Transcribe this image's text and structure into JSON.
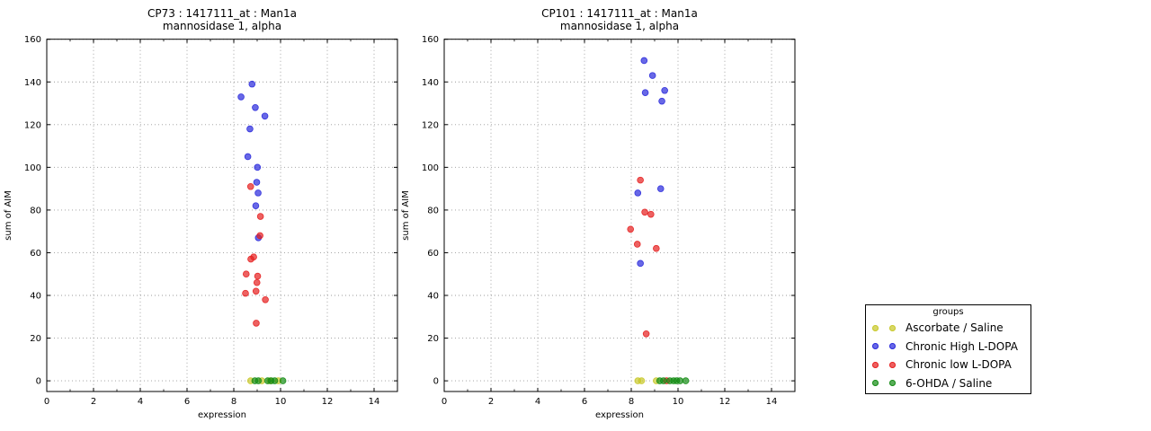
{
  "figure": {
    "background": "#ffffff"
  },
  "legend": {
    "title": "groups",
    "marker_alpha": 0.7,
    "entries": [
      {
        "label": "Ascorbate / Saline",
        "color": "#c8c828"
      },
      {
        "label": "Chronic High L-DOPA",
        "color": "#2828dc"
      },
      {
        "label": "Chronic low L-DOPA",
        "color": "#e61e1e"
      },
      {
        "label": "6-OHDA / Saline",
        "color": "#148c14"
      }
    ]
  },
  "chart_data": [
    {
      "type": "scatter",
      "title_line1": "CP73 : 1417111_at : Man1a",
      "title_line2": "mannosidase 1, alpha",
      "xlabel": "expression",
      "ylabel": "sum of AIM",
      "xlim": [
        0,
        15
      ],
      "ylim": [
        -5,
        160
      ],
      "xticks": [
        0,
        2,
        4,
        6,
        8,
        10,
        12,
        14
      ],
      "yticks": [
        0,
        20,
        40,
        60,
        80,
        100,
        120,
        140,
        160
      ],
      "grid": true,
      "legend_position": "outside-right",
      "series": [
        {
          "name": "Ascorbate / Saline",
          "color": "#c8c828",
          "points": [
            [
              8.72,
              0
            ],
            [
              9.2,
              0
            ],
            [
              9.55,
              0
            ],
            [
              9.9,
              0
            ]
          ]
        },
        {
          "name": "Chronic High L-DOPA",
          "color": "#2828dc",
          "points": [
            [
              8.78,
              139
            ],
            [
              8.31,
              133
            ],
            [
              8.92,
              128
            ],
            [
              9.33,
              124
            ],
            [
              8.69,
              118
            ],
            [
              8.6,
              105
            ],
            [
              9.01,
              100
            ],
            [
              8.98,
              93
            ],
            [
              9.04,
              88
            ],
            [
              8.94,
              82
            ],
            [
              9.05,
              67
            ]
          ]
        },
        {
          "name": "Chronic low L-DOPA",
          "color": "#e61e1e",
          "points": [
            [
              8.72,
              91
            ],
            [
              9.14,
              77
            ],
            [
              9.12,
              68
            ],
            [
              8.85,
              58
            ],
            [
              8.73,
              57
            ],
            [
              8.53,
              50
            ],
            [
              9.02,
              49
            ],
            [
              8.99,
              46
            ],
            [
              8.95,
              42
            ],
            [
              8.5,
              41
            ],
            [
              9.35,
              38
            ],
            [
              8.96,
              27
            ]
          ]
        },
        {
          "name": "6-OHDA / Saline",
          "color": "#148c14",
          "points": [
            [
              8.9,
              0
            ],
            [
              9.05,
              0
            ],
            [
              9.45,
              0
            ],
            [
              9.6,
              0
            ],
            [
              9.75,
              0
            ],
            [
              10.1,
              0
            ]
          ]
        }
      ]
    },
    {
      "type": "scatter",
      "title_line1": "CP101 : 1417111_at : Man1a",
      "title_line2": "mannosidase 1, alpha",
      "xlabel": "expression",
      "ylabel": "sum of AIM",
      "xlim": [
        0,
        15
      ],
      "ylim": [
        -5,
        160
      ],
      "xticks": [
        0,
        2,
        4,
        6,
        8,
        10,
        12,
        14
      ],
      "yticks": [
        0,
        20,
        40,
        60,
        80,
        100,
        120,
        140,
        160
      ],
      "grid": true,
      "series": [
        {
          "name": "Ascorbate / Saline",
          "color": "#c8c828",
          "points": [
            [
              8.28,
              0
            ],
            [
              8.44,
              0
            ],
            [
              9.07,
              0
            ]
          ]
        },
        {
          "name": "Chronic High L-DOPA",
          "color": "#2828dc",
          "points": [
            [
              8.55,
              150
            ],
            [
              8.91,
              143
            ],
            [
              9.43,
              136
            ],
            [
              8.6,
              135
            ],
            [
              9.31,
              131
            ],
            [
              9.26,
              90
            ],
            [
              8.28,
              88
            ],
            [
              8.39,
              55
            ]
          ]
        },
        {
          "name": "Chronic low L-DOPA",
          "color": "#e61e1e",
          "points": [
            [
              8.39,
              94
            ],
            [
              8.58,
              79
            ],
            [
              8.84,
              78
            ],
            [
              7.97,
              71
            ],
            [
              8.26,
              64
            ],
            [
              9.07,
              62
            ],
            [
              8.64,
              22
            ],
            [
              9.51,
              0
            ]
          ]
        },
        {
          "name": "6-OHDA / Saline",
          "color": "#148c14",
          "points": [
            [
              9.22,
              0
            ],
            [
              9.38,
              0
            ],
            [
              9.65,
              0
            ],
            [
              9.81,
              0
            ],
            [
              9.94,
              0
            ],
            [
              10.09,
              0
            ],
            [
              10.33,
              0
            ]
          ]
        }
      ]
    }
  ]
}
